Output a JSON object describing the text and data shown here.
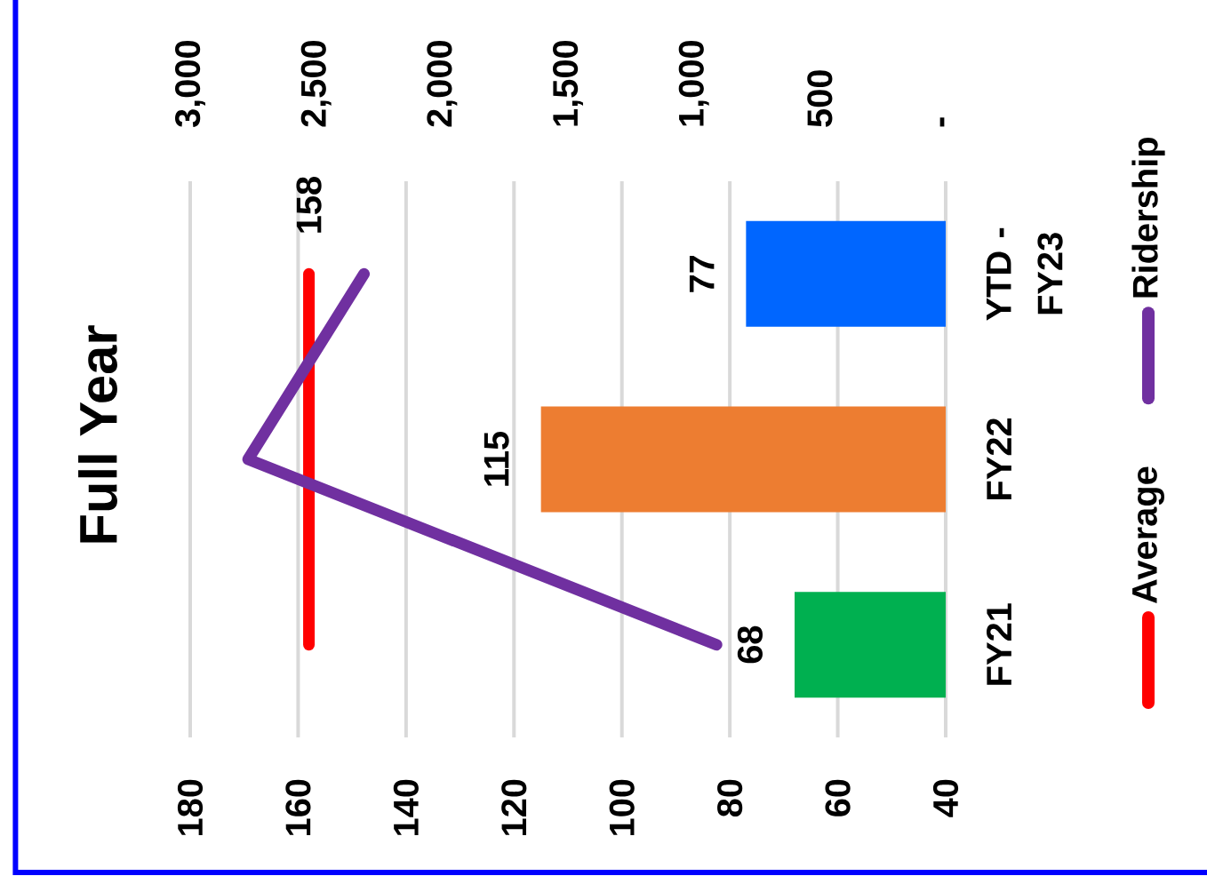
{
  "chart_data": {
    "type": "bar",
    "orientation": "horizontal",
    "title": "Full Year",
    "categories": [
      "YTD - FY23",
      "FY22",
      "FY21"
    ],
    "series": [
      {
        "colors": [
          "#0066ff",
          "#ed7d31",
          "#00b050"
        ],
        "values": [
          77,
          115,
          68
        ],
        "value_labels": [
          "77",
          "115",
          "68"
        ]
      },
      {
        "type": "line",
        "name": "Average",
        "color": "#ff0000",
        "values": [
          158,
          158,
          158
        ],
        "value_labels": [
          "158",
          null,
          null
        ]
      },
      {
        "type": "line",
        "name": "Ridership",
        "color": "#7030a0",
        "axis": "x2",
        "values": [
          2310,
          2770,
          910
        ]
      }
    ],
    "xlim": [
      180,
      40
    ],
    "xticks": [
      180,
      160,
      140,
      120,
      100,
      80,
      60,
      40
    ],
    "x2lim": [
      3000,
      0
    ],
    "x2ticks": [
      {
        "value": 3000,
        "label": "3,000"
      },
      {
        "value": 2500,
        "label": "2,500"
      },
      {
        "value": 2000,
        "label": "2,000"
      },
      {
        "value": 1500,
        "label": "1,500"
      },
      {
        "value": 1000,
        "label": "1,000"
      },
      500,
      {
        "value": 0,
        "label": "-"
      }
    ],
    "grid": "x",
    "legend": "right"
  }
}
